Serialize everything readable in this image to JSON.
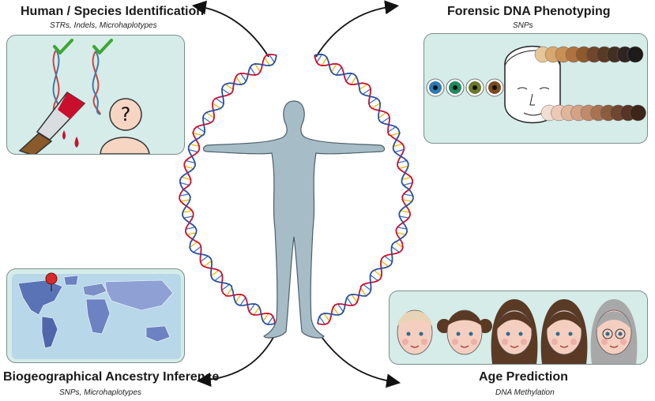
{
  "sections": {
    "top_left": {
      "title": "Human / Species Identification",
      "subtitle": "STRs, Indels, Microhaplotypes"
    },
    "top_right": {
      "title": "Forensic DNA Phenotyping",
      "subtitle": "SNPs"
    },
    "bottom_left": {
      "title": "Biogeographical Ancestry Inference",
      "subtitle": "SNPs, Microhaplotypes"
    },
    "bottom_right": {
      "title": "Age Prediction",
      "subtitle": "DNA Methylation"
    }
  },
  "identification_panel": {
    "unknown_symbol": "?"
  },
  "colors": {
    "panel_bg": "#d5ece9",
    "panel_border": "#7a8f8c",
    "body": "#a6bcc6",
    "check": "#3fa535",
    "blood": "#c8102e",
    "map_land": "#5a73b6",
    "map_ocean": "#b8d7e8"
  },
  "eye_colors": [
    "#2e79b3",
    "#1f8a5b",
    "#6b7a2c",
    "#7a4a1e"
  ],
  "hair_colors": [
    "#e6c79a",
    "#d8a86e",
    "#c98f55",
    "#b0733d",
    "#8e5a2c",
    "#70472a",
    "#5a3a25",
    "#433024",
    "#2e2521",
    "#1d1a19"
  ],
  "skin_colors": [
    "#f2ddd2",
    "#ecc9b6",
    "#e0b59a",
    "#d4a284",
    "#c18b6a",
    "#a87352",
    "#8c5c3e",
    "#6f4630",
    "#573425",
    "#3d2519"
  ],
  "age_faces": [
    {
      "stage": "baby",
      "hair": "#e6d4b4"
    },
    {
      "stage": "child",
      "hair": "#5a3a25"
    },
    {
      "stage": "young-adult",
      "hair": "#5a3a25"
    },
    {
      "stage": "middle-aged",
      "hair": "#5a3a25"
    },
    {
      "stage": "elderly",
      "hair": "#a8a8a8"
    }
  ]
}
